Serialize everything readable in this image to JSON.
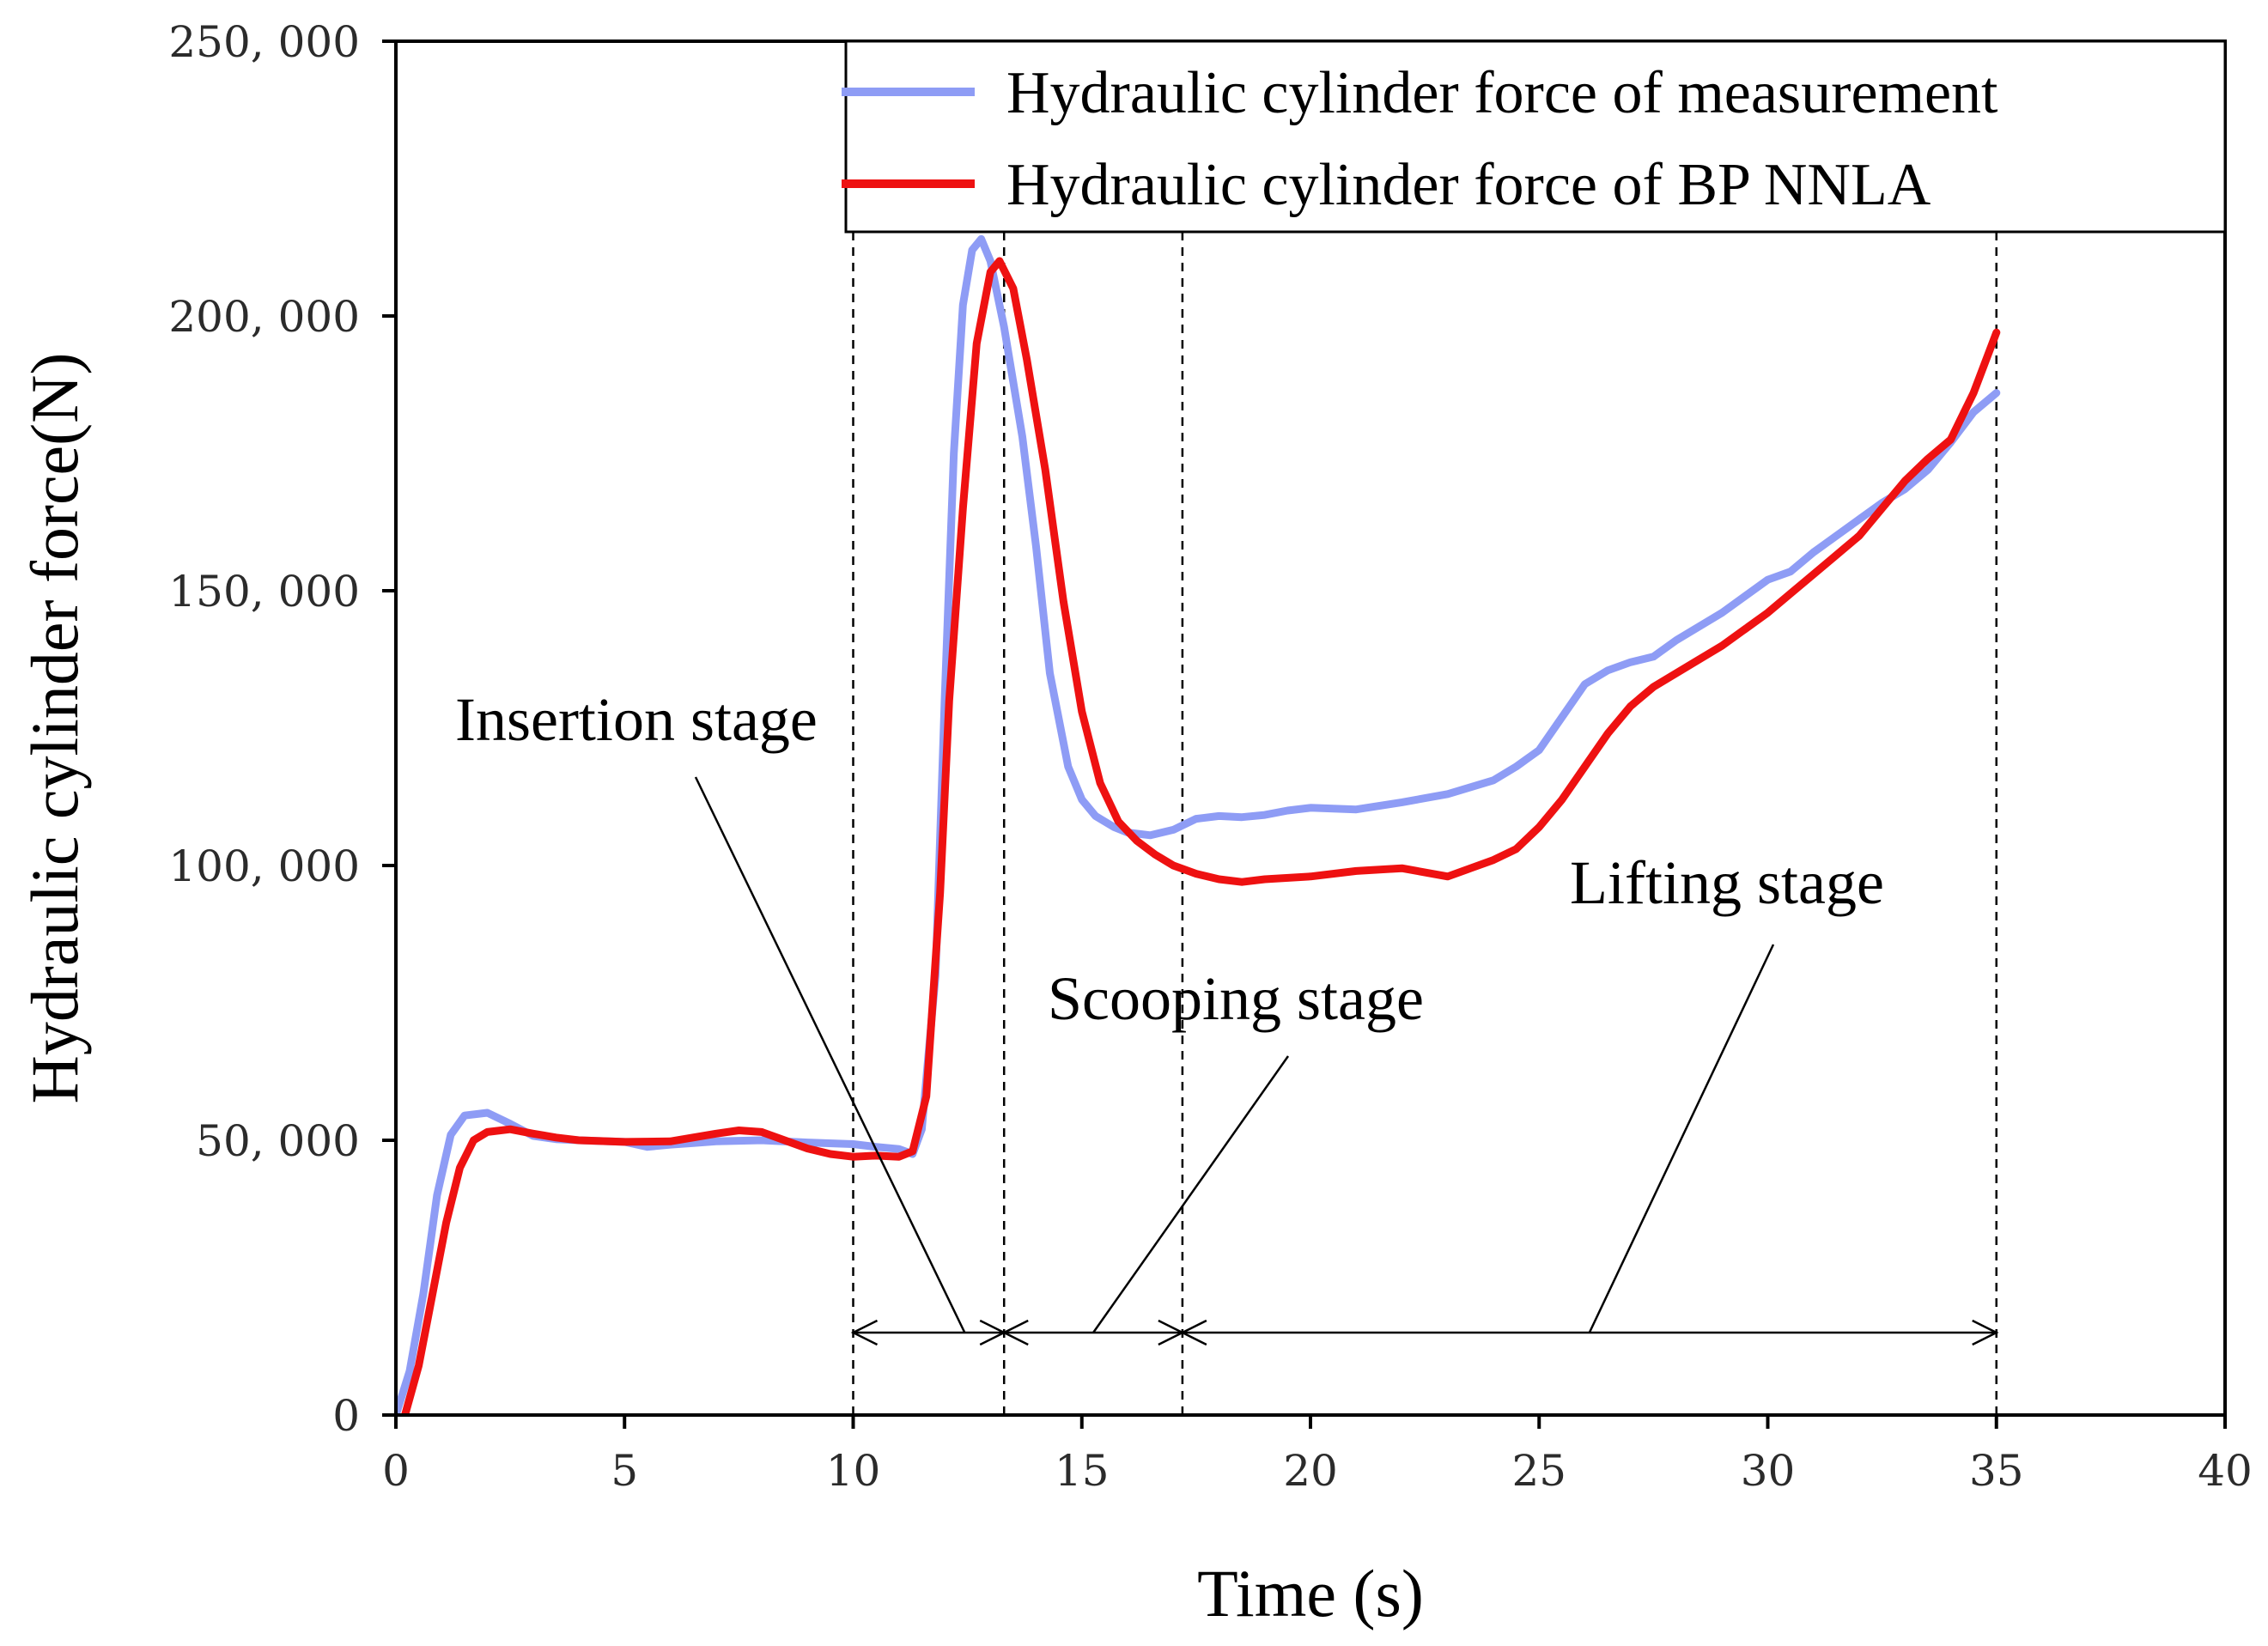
{
  "chart_data": {
    "type": "line",
    "title": "",
    "xlabel": "Time (s)",
    "ylabel": "Hydraulic cylinder force(N)",
    "xlim": [
      0,
      40
    ],
    "ylim": [
      0,
      250000
    ],
    "x_ticks": [
      0,
      5,
      10,
      15,
      20,
      25,
      30,
      35,
      40
    ],
    "x_tick_labels": [
      "0",
      "5",
      "10",
      "15",
      "20",
      "25",
      "30",
      "35",
      "40"
    ],
    "y_ticks": [
      0,
      50000,
      100000,
      150000,
      200000,
      250000
    ],
    "y_tick_labels": [
      "0",
      "50, 000",
      "100, 000",
      "150, 000",
      "200, 000",
      "250, 000"
    ],
    "grid": false,
    "legend_position": "top-right",
    "colors": {
      "measurement": "#8e9cf5",
      "bpnnla": "#ee1111",
      "axis": "#000000"
    },
    "series": [
      {
        "name": "Hydraulic cylinder force of measurement",
        "color": "#8e9cf5",
        "points": [
          [
            0,
            0
          ],
          [
            0.3,
            8000
          ],
          [
            0.6,
            22000
          ],
          [
            0.9,
            40000
          ],
          [
            1.2,
            51000
          ],
          [
            1.5,
            54500
          ],
          [
            2.0,
            55000
          ],
          [
            2.5,
            53000
          ],
          [
            3.0,
            50800
          ],
          [
            3.5,
            50200
          ],
          [
            4.0,
            50000
          ],
          [
            5.0,
            49700
          ],
          [
            5.5,
            48800
          ],
          [
            6.0,
            49200
          ],
          [
            6.5,
            49500
          ],
          [
            7.0,
            49800
          ],
          [
            8.0,
            50000
          ],
          [
            9.0,
            49600
          ],
          [
            10.0,
            49300
          ],
          [
            10.5,
            48800
          ],
          [
            11.0,
            48400
          ],
          [
            11.3,
            47500
          ],
          [
            11.5,
            52000
          ],
          [
            11.8,
            80000
          ],
          [
            12.0,
            130000
          ],
          [
            12.2,
            175000
          ],
          [
            12.4,
            202000
          ],
          [
            12.6,
            212000
          ],
          [
            12.8,
            214000
          ],
          [
            13.0,
            210000
          ],
          [
            13.3,
            198000
          ],
          [
            13.7,
            178000
          ],
          [
            14.0,
            158000
          ],
          [
            14.3,
            135000
          ],
          [
            14.7,
            118000
          ],
          [
            15.0,
            112000
          ],
          [
            15.3,
            109000
          ],
          [
            15.7,
            107000
          ],
          [
            16.0,
            106000
          ],
          [
            16.5,
            105500
          ],
          [
            17.0,
            106500
          ],
          [
            17.5,
            108500
          ],
          [
            18.0,
            109000
          ],
          [
            18.5,
            108800
          ],
          [
            19.0,
            109200
          ],
          [
            19.5,
            110000
          ],
          [
            20.0,
            110500
          ],
          [
            21.0,
            110200
          ],
          [
            22.0,
            111500
          ],
          [
            23.0,
            113000
          ],
          [
            24.0,
            115500
          ],
          [
            24.5,
            118000
          ],
          [
            25.0,
            121000
          ],
          [
            25.5,
            127000
          ],
          [
            26.0,
            133000
          ],
          [
            26.5,
            135500
          ],
          [
            27.0,
            137000
          ],
          [
            27.5,
            138000
          ],
          [
            28.0,
            141000
          ],
          [
            29.0,
            146000
          ],
          [
            30.0,
            152000
          ],
          [
            30.5,
            153500
          ],
          [
            31.0,
            157000
          ],
          [
            32.0,
            163000
          ],
          [
            32.5,
            166000
          ],
          [
            33.0,
            168500
          ],
          [
            33.5,
            172000
          ],
          [
            34.0,
            177000
          ],
          [
            34.5,
            182500
          ],
          [
            35.0,
            186000
          ]
        ]
      },
      {
        "name": "Hydraulic cylinder force of BP NNLA",
        "color": "#ee1111",
        "points": [
          [
            0.2,
            0
          ],
          [
            0.5,
            9000
          ],
          [
            0.8,
            22000
          ],
          [
            1.1,
            35000
          ],
          [
            1.4,
            45000
          ],
          [
            1.7,
            50000
          ],
          [
            2.0,
            51500
          ],
          [
            2.5,
            52000
          ],
          [
            3.0,
            51200
          ],
          [
            3.5,
            50500
          ],
          [
            4.0,
            50000
          ],
          [
            5.0,
            49700
          ],
          [
            6.0,
            49800
          ],
          [
            6.5,
            50500
          ],
          [
            7.0,
            51200
          ],
          [
            7.5,
            51800
          ],
          [
            8.0,
            51500
          ],
          [
            8.5,
            50000
          ],
          [
            9.0,
            48500
          ],
          [
            9.5,
            47500
          ],
          [
            10.0,
            47000
          ],
          [
            10.5,
            47200
          ],
          [
            11.0,
            47000
          ],
          [
            11.3,
            48000
          ],
          [
            11.6,
            58000
          ],
          [
            11.9,
            95000
          ],
          [
            12.1,
            130000
          ],
          [
            12.4,
            165000
          ],
          [
            12.7,
            195000
          ],
          [
            13.0,
            208000
          ],
          [
            13.2,
            210000
          ],
          [
            13.5,
            205000
          ],
          [
            13.8,
            192000
          ],
          [
            14.2,
            172000
          ],
          [
            14.6,
            148000
          ],
          [
            15.0,
            128000
          ],
          [
            15.4,
            115000
          ],
          [
            15.8,
            108000
          ],
          [
            16.2,
            104500
          ],
          [
            16.6,
            102000
          ],
          [
            17.0,
            100000
          ],
          [
            17.5,
            98500
          ],
          [
            18.0,
            97500
          ],
          [
            18.5,
            97000
          ],
          [
            19.0,
            97500
          ],
          [
            20.0,
            98000
          ],
          [
            21.0,
            99000
          ],
          [
            22.0,
            99500
          ],
          [
            23.0,
            98000
          ],
          [
            23.5,
            99500
          ],
          [
            24.0,
            101000
          ],
          [
            24.5,
            103000
          ],
          [
            25.0,
            107000
          ],
          [
            25.5,
            112000
          ],
          [
            26.0,
            118000
          ],
          [
            26.5,
            124000
          ],
          [
            27.0,
            129000
          ],
          [
            27.5,
            132500
          ],
          [
            28.0,
            135000
          ],
          [
            28.5,
            137500
          ],
          [
            29.0,
            140000
          ],
          [
            29.5,
            143000
          ],
          [
            30.0,
            146000
          ],
          [
            30.5,
            149500
          ],
          [
            31.0,
            153000
          ],
          [
            31.5,
            156500
          ],
          [
            32.0,
            160000
          ],
          [
            32.5,
            165000
          ],
          [
            33.0,
            170000
          ],
          [
            33.5,
            174000
          ],
          [
            34.0,
            177500
          ],
          [
            34.5,
            186000
          ],
          [
            35.0,
            197000
          ]
        ]
      }
    ],
    "stage_boundaries": [
      10,
      13.3,
      17.2,
      35
    ],
    "annotations": [
      {
        "text": "Insertion stage",
        "arrow_span": [
          10,
          13.3
        ]
      },
      {
        "text": "Scooping stage",
        "arrow_span": [
          13.3,
          17.2
        ]
      },
      {
        "text": "Lifting stage",
        "arrow_span": [
          17.2,
          35
        ]
      }
    ],
    "arrow_level": 15000
  }
}
